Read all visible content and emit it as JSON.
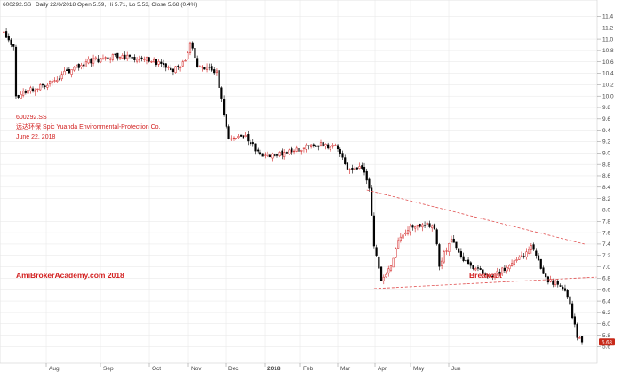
{
  "header": {
    "symbol": "600292.SS",
    "summary": "Daily 22/6/2018 Open 5.59, Hi 5.71, Lo 5.53, Close 5.68 (0.4%)"
  },
  "annotations": {
    "ticker": "600292.SS",
    "company": "远达环保 Spic Yuanda Environmental-Protection Co.",
    "date": "June 22, 2018",
    "watermark": "AmiBrokerAcademy.com  2018",
    "breakout": "Breakout"
  },
  "price_tag": "5.68",
  "colors": {
    "up_candle": "#d22020",
    "down_candle": "#000000",
    "trendline": "#e05050",
    "price_tag_bg": "#c82a1a",
    "grid": "#e6e6e6"
  },
  "chart_data": {
    "type": "candlestick",
    "title": "",
    "ylim": [
      5.45,
      11.5
    ],
    "y_ticks": [
      "5.6",
      "5.8",
      "6.0",
      "6.2",
      "6.4",
      "6.6",
      "6.8",
      "7.0",
      "7.2",
      "7.4",
      "7.6",
      "7.8",
      "8.0",
      "8.2",
      "8.4",
      "8.6",
      "8.8",
      "9.0",
      "9.2",
      "9.4",
      "9.6",
      "9.8",
      "10.0",
      "10.2",
      "10.4",
      "10.6",
      "10.8",
      "11.0",
      "11.2",
      "11.4"
    ],
    "x_ticks": [
      "Aug",
      "Sep",
      "Oct",
      "Nov",
      "Dec",
      "2018",
      "Feb",
      "Mar",
      "Apr",
      "May",
      "Jun"
    ],
    "grid": true,
    "price_path": [
      [
        0,
        11.1
      ],
      [
        4,
        10.85
      ],
      [
        5,
        10.0
      ],
      [
        10,
        10.1
      ],
      [
        18,
        10.2
      ],
      [
        25,
        10.4
      ],
      [
        35,
        10.6
      ],
      [
        45,
        10.7
      ],
      [
        60,
        10.65
      ],
      [
        70,
        10.45
      ],
      [
        75,
        10.6
      ],
      [
        77,
        10.95
      ],
      [
        80,
        10.55
      ],
      [
        88,
        10.4
      ],
      [
        93,
        9.25
      ],
      [
        100,
        9.3
      ],
      [
        105,
        9.0
      ],
      [
        110,
        8.95
      ],
      [
        120,
        9.05
      ],
      [
        130,
        9.15
      ],
      [
        138,
        9.1
      ],
      [
        142,
        8.7
      ],
      [
        148,
        8.75
      ],
      [
        151,
        8.4
      ],
      [
        153,
        7.4
      ],
      [
        156,
        6.8
      ],
      [
        160,
        7.0
      ],
      [
        163,
        7.5
      ],
      [
        168,
        7.7
      ],
      [
        173,
        7.75
      ],
      [
        178,
        7.7
      ],
      [
        180,
        7.05
      ],
      [
        185,
        7.5
      ],
      [
        190,
        7.1
      ],
      [
        196,
        6.95
      ],
      [
        200,
        6.85
      ],
      [
        205,
        6.9
      ],
      [
        210,
        7.1
      ],
      [
        215,
        7.2
      ],
      [
        218,
        7.4
      ],
      [
        222,
        7.0
      ],
      [
        225,
        6.75
      ],
      [
        230,
        6.7
      ],
      [
        233,
        6.5
      ],
      [
        235,
        6.15
      ],
      [
        237,
        5.8
      ],
      [
        239,
        5.68
      ]
    ],
    "last_close": 5.68,
    "trendlines": [
      {
        "name": "upper",
        "x": [
          150,
          240
        ],
        "y": [
          8.35,
          7.4
        ]
      },
      {
        "name": "lower",
        "x": [
          153,
          245
        ],
        "y": [
          6.62,
          6.82
        ]
      }
    ]
  }
}
